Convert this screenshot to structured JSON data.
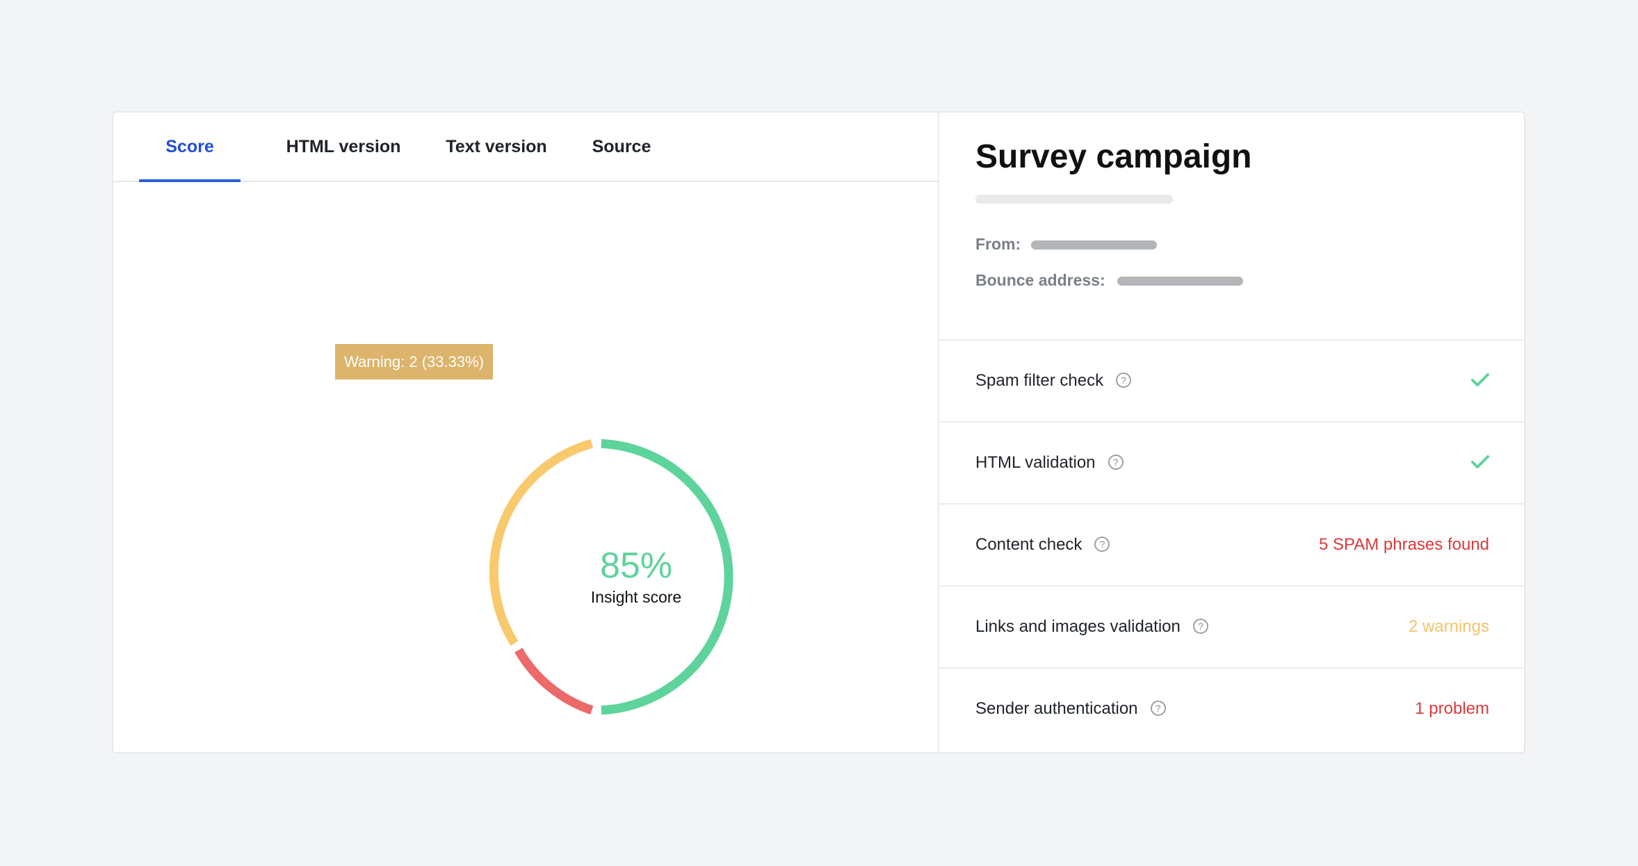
{
  "tabs": [
    {
      "label": "Score",
      "active": true
    },
    {
      "label": "HTML version",
      "active": false
    },
    {
      "label": "Text version",
      "active": false
    },
    {
      "label": "Source",
      "active": false
    }
  ],
  "score": {
    "value": "85%",
    "label": "Insight score",
    "tooltip": "Warning: 2 (33.33%)",
    "colors": {
      "pass": "#5fd39c",
      "warning": "#f9c96e",
      "fail": "#ec6a6a"
    }
  },
  "campaign": {
    "title": "Survey campaign",
    "from_label": "From:",
    "bounce_label": "Bounce address:"
  },
  "checks": [
    {
      "label": "Spam filter check",
      "status": "",
      "status_icon": "check-icon"
    },
    {
      "label": "HTML validation",
      "status": "",
      "status_icon": "check-icon"
    },
    {
      "label": "Content check",
      "status": "5 SPAM phrases found",
      "status_color": "#d93a3a"
    },
    {
      "label": "Links and images validation",
      "status": "2 warnings",
      "status_color": "#f1c36c"
    },
    {
      "label": "Sender authentication",
      "status": "1 problem",
      "status_color": "#d93a3a"
    }
  ]
}
